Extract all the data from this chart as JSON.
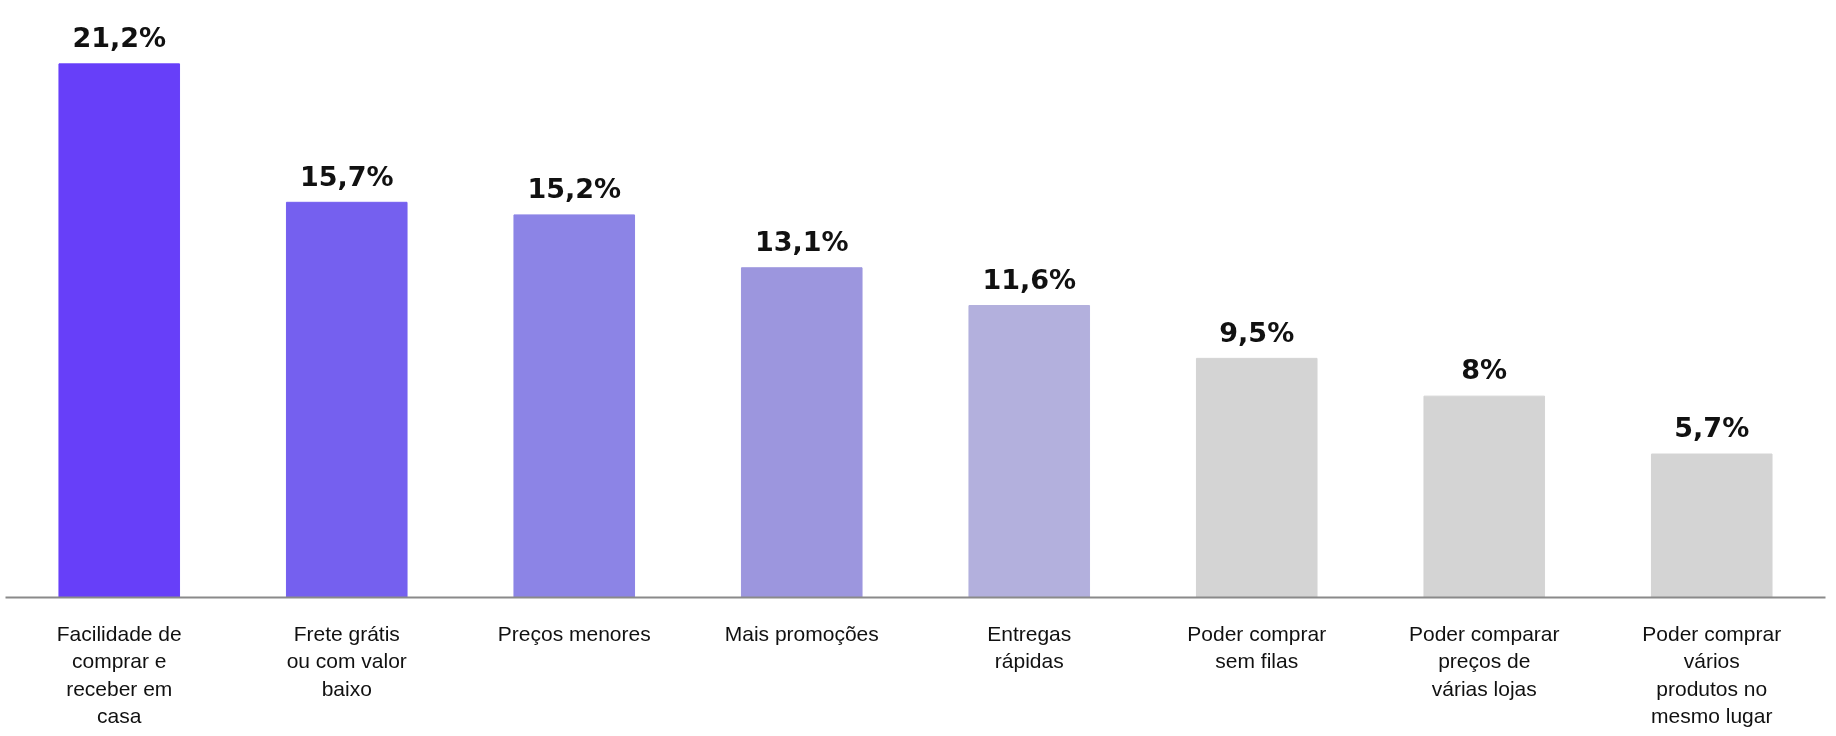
{
  "chart_data": {
    "type": "bar",
    "categories": [
      "Facilidade de comprar e receber em casa",
      "Frete grátis ou com valor baixo",
      "Preços menores",
      "Mais promoções",
      "Entregas rápidas",
      "Poder comprar sem filas",
      "Poder comparar preços de várias lojas",
      "Poder comprar vários produtos no mesmo lugar"
    ],
    "values": [
      21.2,
      15.7,
      15.2,
      13.1,
      11.6,
      9.5,
      8,
      5.7
    ],
    "value_labels": [
      "21,2%",
      "15,7%",
      "15,2%",
      "13,1%",
      "11,6%",
      "9,5%",
      "8%",
      "5,7%"
    ],
    "colors": [
      "#673ff9",
      "#7560ef",
      "#8c84e6",
      "#9c96de",
      "#b3b0dd",
      "#d4d4d4",
      "#d4d4d4",
      "#d4d4d4"
    ],
    "grid": false
  }
}
